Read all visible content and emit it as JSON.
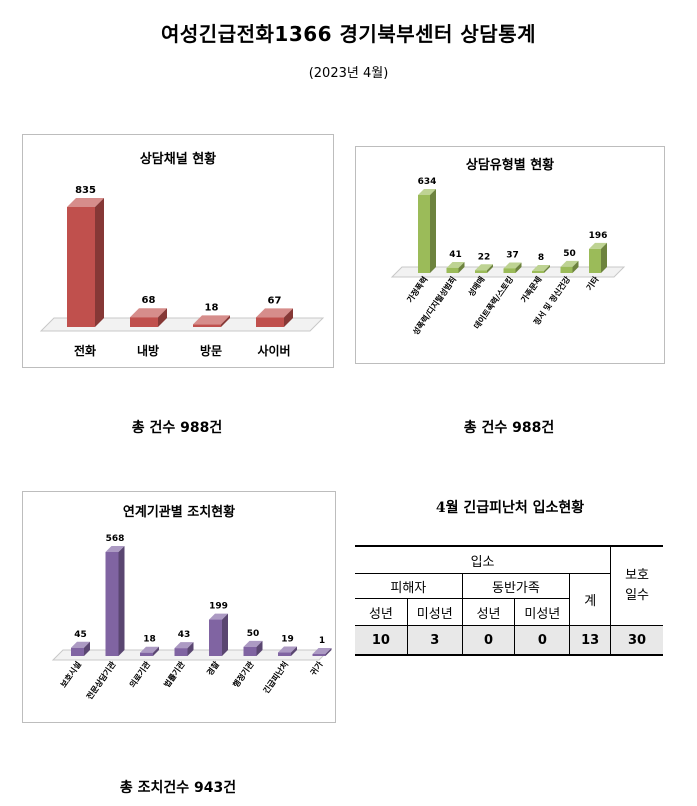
{
  "title": "여성긴급전화1366 경기북부센터 상담통계",
  "subtitle": "(2023년  4월)",
  "chart_data": [
    {
      "type": "bar",
      "title": "상담채널 현황",
      "categories": [
        "전화",
        "내방",
        "방문",
        "사이버"
      ],
      "values": [
        835,
        68,
        18,
        67
      ],
      "color": "#c0504d",
      "total_label": "총  건수  988건"
    },
    {
      "type": "bar",
      "title": "상담유형별 현황",
      "categories": [
        "가정폭력",
        "성폭력/디지털성범죄",
        "성매매",
        "데이트폭력/스토킹",
        "가족문제",
        "정서 및 정신건강",
        "기타"
      ],
      "values": [
        634,
        41,
        22,
        37,
        8,
        50,
        196
      ],
      "color": "#9bbb59",
      "total_label": "총  건수  988건"
    },
    {
      "type": "bar",
      "title": "연계기관별 조치현황",
      "categories": [
        "보호시설",
        "전문상담기관",
        "의료기관",
        "법률기관",
        "경찰",
        "행정기관",
        "긴급피난처",
        "귀가"
      ],
      "values": [
        45,
        568,
        18,
        43,
        199,
        50,
        19,
        1
      ],
      "color": "#8064a2",
      "total_label": "총  조치건수  943건"
    }
  ],
  "shelter_table": {
    "title": "4월  긴급피난처  입소현황",
    "header_admission": "입소",
    "header_victim": "피해자",
    "header_companion": "동반가족",
    "header_total": "계",
    "header_protection": "보호\n일수",
    "sub_adult": "성년",
    "sub_minor": "미성년",
    "values": [
      "10",
      "3",
      "0",
      "0",
      "13",
      "30"
    ]
  }
}
